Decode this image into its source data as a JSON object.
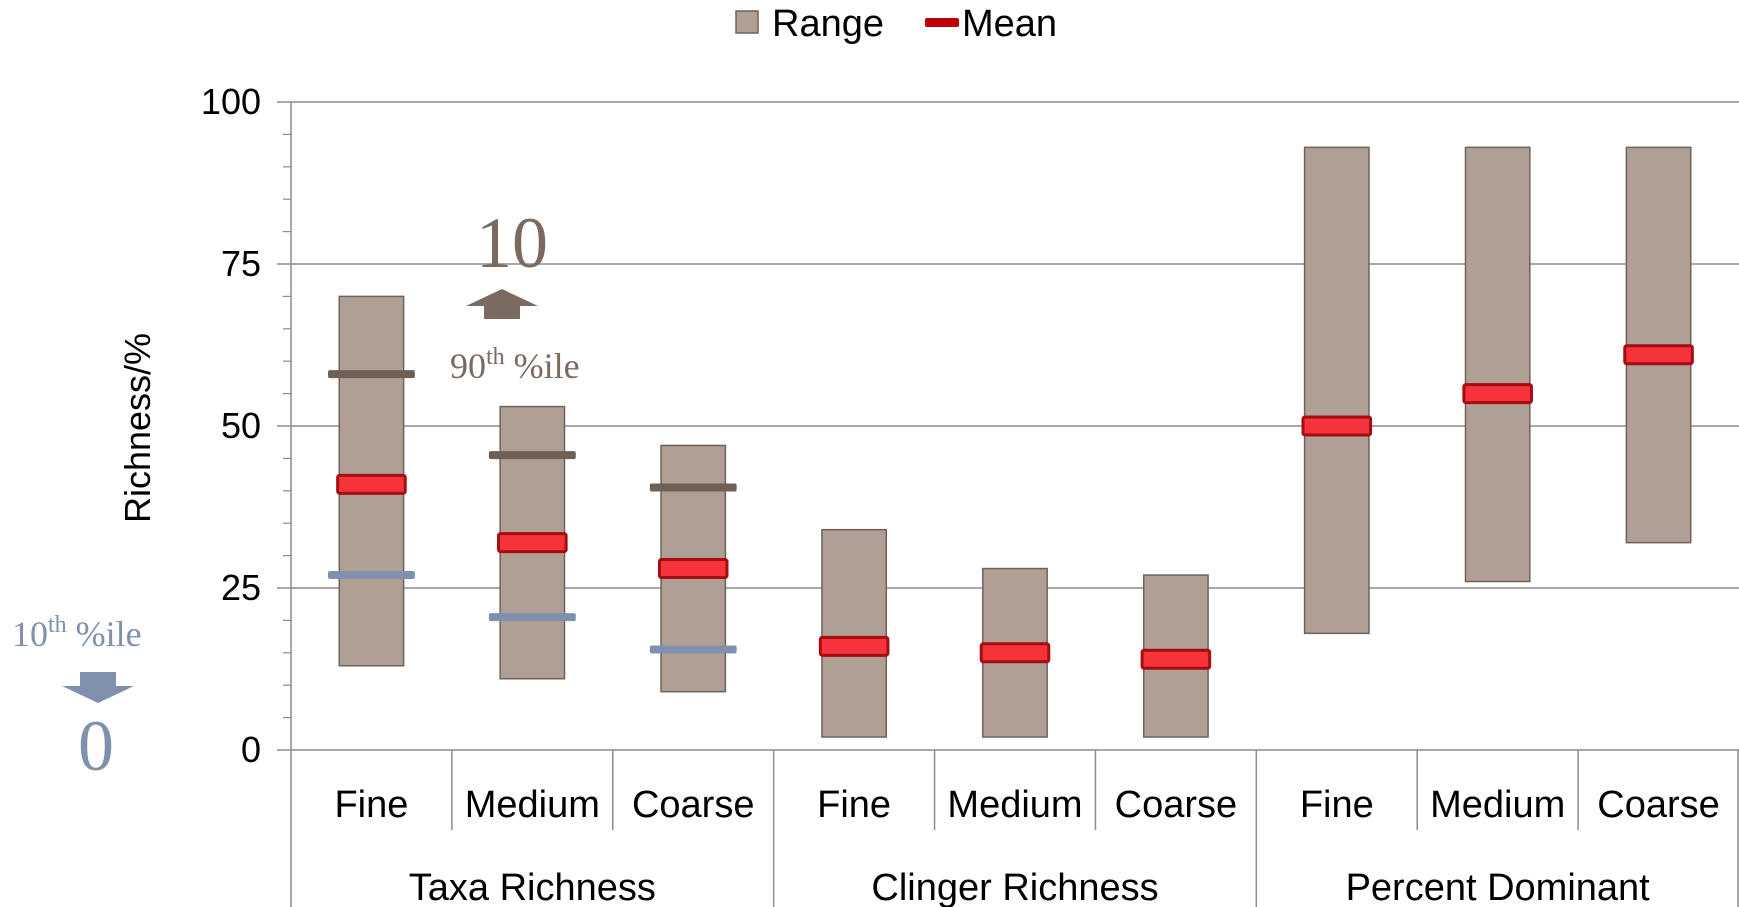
{
  "chart_data": {
    "type": "bar",
    "ylabel": "Richness/%",
    "ylim": [
      0,
      100
    ],
    "yticks": [
      "0",
      "25",
      "50",
      "75",
      "100"
    ],
    "grid": true,
    "legend_position": "top-center",
    "legend": [
      {
        "name": "Range",
        "color": "#b09f95"
      },
      {
        "name": "Mean",
        "color": "#e8242b"
      }
    ],
    "groups": [
      {
        "label": "Taxa Richness",
        "categories": [
          {
            "label": "Fine",
            "range": [
              13,
              70
            ],
            "mean": 41,
            "p90": 58,
            "p10": 27
          },
          {
            "label": "Medium",
            "range": [
              11,
              53
            ],
            "mean": 32,
            "p90": 45.5,
            "p10": 20.5
          },
          {
            "label": "Coarse",
            "range": [
              9,
              47
            ],
            "mean": 28,
            "p90": 40.5,
            "p10": 15.5
          }
        ]
      },
      {
        "label": "Clinger Richness",
        "categories": [
          {
            "label": "Fine",
            "range": [
              2,
              34
            ],
            "mean": 16
          },
          {
            "label": "Medium",
            "range": [
              2,
              28
            ],
            "mean": 15
          },
          {
            "label": "Coarse",
            "range": [
              2,
              27
            ],
            "mean": 14
          }
        ]
      },
      {
        "label": "Percent Dominant",
        "categories": [
          {
            "label": "Fine",
            "range": [
              18,
              93
            ],
            "mean": 50
          },
          {
            "label": "Medium",
            "range": [
              26,
              93
            ],
            "mean": 55
          },
          {
            "label": "Coarse",
            "range": [
              32,
              93
            ],
            "mean": 61
          }
        ]
      }
    ],
    "annotations": {
      "p90": {
        "value": "10",
        "label_base": "90",
        "label_sup": "th",
        "label_rest": " %ile",
        "color": "#7b6a60"
      },
      "p10": {
        "value": "0",
        "label_base": "10",
        "label_sup": "th",
        "label_rest": " %ile",
        "color": "#8190ad"
      }
    }
  }
}
